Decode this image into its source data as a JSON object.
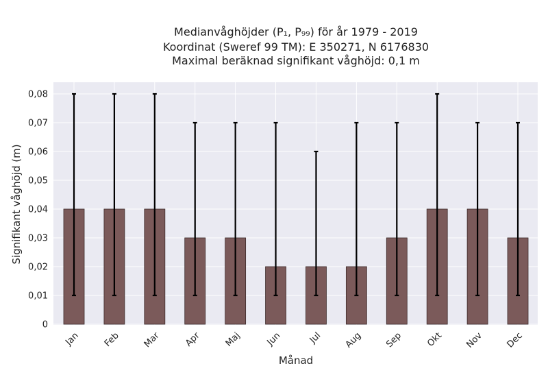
{
  "chart_data": {
    "type": "bar",
    "title_lines": [
      "Medianvåghöjder (P₁, P₉₉) för år 1979 - 2019",
      "Koordinat (Sweref 99 TM): E 350271, N 6176830",
      "Maximal beräknad signifikant våghöjd: 0,1 m"
    ],
    "xlabel": "Månad",
    "ylabel": "Signifikant våghöjd (m)",
    "categories": [
      "Jan",
      "Feb",
      "Mar",
      "Apr",
      "Maj",
      "Jun",
      "Jul",
      "Aug",
      "Sep",
      "Okt",
      "Nov",
      "Dec"
    ],
    "values": [
      0.04,
      0.04,
      0.04,
      0.03,
      0.03,
      0.02,
      0.02,
      0.02,
      0.03,
      0.04,
      0.04,
      0.03
    ],
    "error_low": [
      0.01,
      0.01,
      0.01,
      0.01,
      0.01,
      0.01,
      0.01,
      0.01,
      0.01,
      0.01,
      0.01,
      0.01
    ],
    "error_high": [
      0.08,
      0.08,
      0.08,
      0.07,
      0.07,
      0.07,
      0.06,
      0.07,
      0.07,
      0.08,
      0.07,
      0.07
    ],
    "ylim": [
      0,
      0.08
    ],
    "yticks": [
      0,
      0.01,
      0.02,
      0.03,
      0.04,
      0.05,
      0.06,
      0.07,
      0.08
    ],
    "ytick_labels": [
      "0",
      "0,01",
      "0,02",
      "0,03",
      "0,04",
      "0,05",
      "0,06",
      "0,07",
      "0,08"
    ],
    "grid": true,
    "colors": {
      "bar": "#7b5a5a",
      "bar_edge": "#3d2b2b",
      "error": "#000000",
      "plot_background": "#eaeaf2",
      "grid": "#ffffff"
    }
  }
}
